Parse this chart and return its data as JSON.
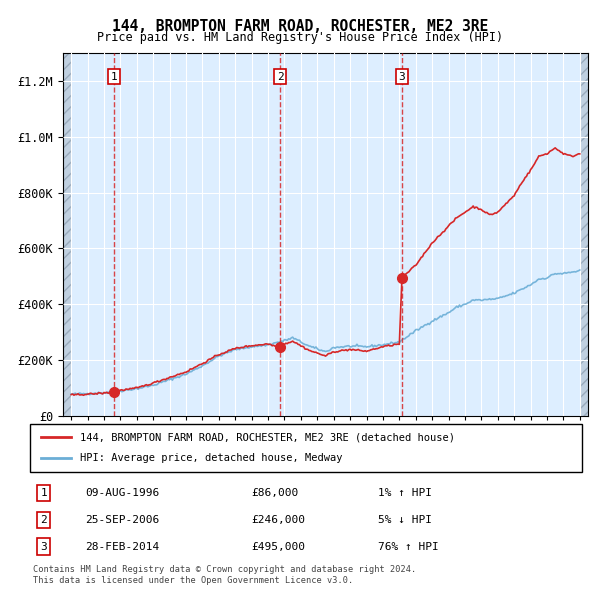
{
  "title": "144, BROMPTON FARM ROAD, ROCHESTER, ME2 3RE",
  "subtitle": "Price paid vs. HM Land Registry's House Price Index (HPI)",
  "transactions": [
    {
      "label": "1",
      "date_str": "09-AUG-1996",
      "year": 1996.61,
      "price": 86000,
      "pct": "1%",
      "dir": "↑"
    },
    {
      "label": "2",
      "date_str": "25-SEP-2006",
      "year": 2006.73,
      "price": 246000,
      "pct": "5%",
      "dir": "↓"
    },
    {
      "label": "3",
      "date_str": "28-FEB-2014",
      "year": 2014.16,
      "price": 495000,
      "pct": "76%",
      "dir": "↑"
    }
  ],
  "legend_line1": "144, BROMPTON FARM ROAD, ROCHESTER, ME2 3RE (detached house)",
  "legend_line2": "HPI: Average price, detached house, Medway",
  "footer": "Contains HM Land Registry data © Crown copyright and database right 2024.\nThis data is licensed under the Open Government Licence v3.0.",
  "hpi_color": "#6baed6",
  "price_color": "#d62728",
  "dot_color": "#d62728",
  "background_color": "#ddeeff",
  "grid_color": "#ffffff",
  "vline_color": "#d62728",
  "ylim": [
    0,
    1300000
  ],
  "xlim_start": 1993.5,
  "xlim_end": 2025.5,
  "hpi_anchors": [
    [
      1994.0,
      78000
    ],
    [
      1995.0,
      80000
    ],
    [
      1996.0,
      83000
    ],
    [
      1997.0,
      90000
    ],
    [
      1998.0,
      98000
    ],
    [
      1999.0,
      110000
    ],
    [
      2000.0,
      130000
    ],
    [
      2001.0,
      150000
    ],
    [
      2002.0,
      180000
    ],
    [
      2003.0,
      215000
    ],
    [
      2004.0,
      238000
    ],
    [
      2005.0,
      248000
    ],
    [
      2006.0,
      255000
    ],
    [
      2007.0,
      270000
    ],
    [
      2007.5,
      280000
    ],
    [
      2008.5,
      250000
    ],
    [
      2009.5,
      230000
    ],
    [
      2010.0,
      245000
    ],
    [
      2011.0,
      250000
    ],
    [
      2012.0,
      248000
    ],
    [
      2013.0,
      255000
    ],
    [
      2014.0,
      265000
    ],
    [
      2015.0,
      305000
    ],
    [
      2016.0,
      340000
    ],
    [
      2017.0,
      370000
    ],
    [
      2017.5,
      390000
    ],
    [
      2018.0,
      400000
    ],
    [
      2018.5,
      415000
    ],
    [
      2019.0,
      415000
    ],
    [
      2020.0,
      420000
    ],
    [
      2021.0,
      440000
    ],
    [
      2022.0,
      470000
    ],
    [
      2022.5,
      490000
    ],
    [
      2023.0,
      495000
    ],
    [
      2023.5,
      510000
    ],
    [
      2024.0,
      510000
    ],
    [
      2024.5,
      515000
    ],
    [
      2025.0,
      520000
    ]
  ],
  "price_anchors": [
    [
      1994.0,
      75000
    ],
    [
      1995.0,
      78000
    ],
    [
      1996.0,
      82000
    ],
    [
      1996.61,
      86000
    ],
    [
      1997.0,
      92000
    ],
    [
      1998.0,
      100000
    ],
    [
      1999.0,
      118000
    ],
    [
      2000.0,
      138000
    ],
    [
      2001.0,
      158000
    ],
    [
      2002.0,
      188000
    ],
    [
      2003.0,
      220000
    ],
    [
      2004.0,
      242000
    ],
    [
      2005.0,
      252000
    ],
    [
      2006.0,
      258000
    ],
    [
      2006.73,
      246000
    ],
    [
      2007.0,
      258000
    ],
    [
      2007.5,
      268000
    ],
    [
      2008.5,
      235000
    ],
    [
      2009.5,
      215000
    ],
    [
      2010.0,
      230000
    ],
    [
      2011.0,
      238000
    ],
    [
      2012.0,
      232000
    ],
    [
      2013.0,
      248000
    ],
    [
      2014.0,
      258000
    ],
    [
      2014.16,
      495000
    ],
    [
      2015.0,
      540000
    ],
    [
      2016.0,
      620000
    ],
    [
      2017.0,
      680000
    ],
    [
      2017.5,
      710000
    ],
    [
      2018.0,
      730000
    ],
    [
      2018.5,
      750000
    ],
    [
      2019.0,
      740000
    ],
    [
      2019.5,
      720000
    ],
    [
      2020.0,
      730000
    ],
    [
      2021.0,
      790000
    ],
    [
      2021.5,
      840000
    ],
    [
      2022.0,
      880000
    ],
    [
      2022.5,
      930000
    ],
    [
      2023.0,
      940000
    ],
    [
      2023.5,
      960000
    ],
    [
      2024.0,
      940000
    ],
    [
      2024.5,
      930000
    ],
    [
      2025.0,
      940000
    ]
  ]
}
